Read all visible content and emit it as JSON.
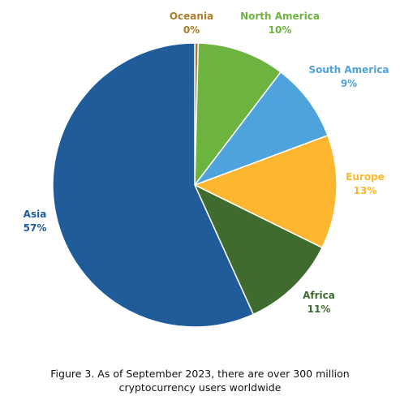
{
  "chart_data": {
    "type": "pie",
    "title": "",
    "start_angle_deg": 0,
    "direction": "clockwise",
    "slices": [
      {
        "label": "Oceania",
        "percent_label": "0%",
        "value": 0.4,
        "color": "#B07A2A"
      },
      {
        "label": "North America",
        "percent_label": "10%",
        "value": 10,
        "color": "#6DB33F"
      },
      {
        "label": "South America",
        "percent_label": "9%",
        "value": 9,
        "color": "#4FA3DC"
      },
      {
        "label": "Europe",
        "percent_label": "13%",
        "value": 13,
        "color": "#FDB62F"
      },
      {
        "label": "Africa",
        "percent_label": "11%",
        "value": 11,
        "color": "#3F6B2E"
      },
      {
        "label": "Asia",
        "percent_label": "57%",
        "value": 57,
        "color": "#1F5C99"
      }
    ]
  },
  "caption": {
    "line1": "Figure 3. As of September 2023, there are over 300 million",
    "line2": "cryptocurrency users worldwide"
  }
}
